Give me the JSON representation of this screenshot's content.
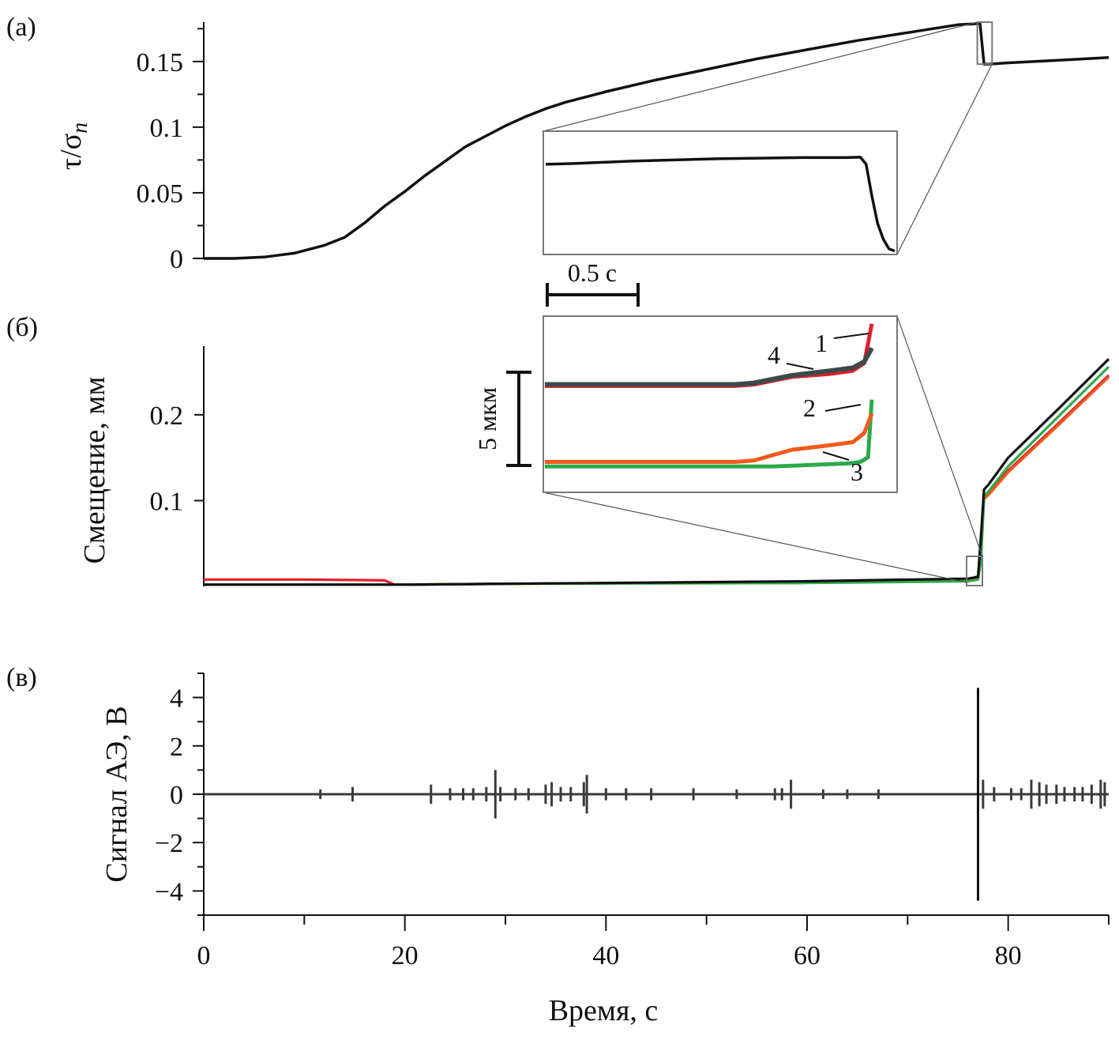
{
  "chart_data": [
    {
      "type": "line",
      "panel_label": "(а)",
      "ylabel": "τ/σ",
      "ylabel_sub": "n",
      "xlim": [
        0,
        90
      ],
      "ylim": [
        0,
        0.18
      ],
      "yticks": [
        0,
        0.05,
        0.1,
        0.15
      ],
      "ytick_labels": [
        "0",
        "0.05",
        "0.1",
        "0.15"
      ],
      "series": [
        {
          "color": "#111111",
          "x": [
            0,
            3,
            6,
            9,
            12,
            14,
            16,
            18,
            20,
            22,
            24,
            26,
            28,
            30,
            32,
            34,
            36,
            38,
            40,
            45,
            50,
            55,
            60,
            65,
            70,
            75,
            77.2,
            77.6,
            78,
            80,
            85,
            90
          ],
          "y": [
            0,
            0,
            0.001,
            0.004,
            0.01,
            0.016,
            0.027,
            0.04,
            0.051,
            0.063,
            0.074,
            0.085,
            0.093,
            0.101,
            0.108,
            0.114,
            0.119,
            0.123,
            0.127,
            0.136,
            0.144,
            0.152,
            0.159,
            0.166,
            0.172,
            0.178,
            0.179,
            0.148,
            0.148,
            0.149,
            0.151,
            0.153
          ]
        }
      ],
      "zoom_box_x": [
        77.4,
        78.4
      ],
      "inset": {
        "x": [
          0,
          0.1,
          0.2,
          0.3,
          0.4,
          0.5,
          0.6,
          0.7,
          0.8,
          0.9,
          1.0,
          1.05,
          1.1,
          1.12,
          1.14,
          1.16,
          1.18,
          1.2,
          1.22
        ],
        "y": [
          0.17,
          0.1702,
          0.1705,
          0.1708,
          0.171,
          0.1712,
          0.1714,
          0.1715,
          0.1716,
          0.1717,
          0.1717,
          0.1717,
          0.1718,
          0.17,
          0.162,
          0.155,
          0.151,
          0.1485,
          0.148
        ]
      },
      "scale_bar_label": "0.5 с"
    },
    {
      "type": "line",
      "panel_label": "(б)",
      "ylabel": "Смещение, мм",
      "xlim": [
        0,
        90
      ],
      "ylim": [
        0,
        0.28
      ],
      "yticks": [
        0.1,
        0.2
      ],
      "ytick_labels": [
        "0.1",
        "0.2"
      ],
      "series": [
        {
          "id": "1",
          "color": "#e0202a",
          "x": [
            0,
            10,
            18,
            19,
            30,
            60,
            76,
            77,
            77.3,
            77.6,
            78,
            80,
            85,
            90
          ],
          "y": [
            0.008,
            0.008,
            0.007,
            0.002,
            0.003,
            0.005,
            0.008,
            0.012,
            0.05,
            0.104,
            0.108,
            0.135,
            0.19,
            0.246
          ]
        },
        {
          "id": "2",
          "color": "#f05a1a",
          "x": [
            0,
            10,
            20,
            30,
            60,
            76,
            77,
            77.3,
            77.6,
            78,
            80,
            85,
            90
          ],
          "y": [
            0.002,
            0.002,
            0.002,
            0.003,
            0.005,
            0.007,
            0.009,
            0.04,
            0.102,
            0.106,
            0.133,
            0.188,
            0.244
          ]
        },
        {
          "id": "3",
          "color": "#2ea84a",
          "x": [
            0,
            10,
            20,
            30,
            60,
            76,
            77,
            77.3,
            77.6,
            78,
            80,
            85,
            90
          ],
          "y": [
            0.002,
            0.002,
            0.002,
            0.003,
            0.004,
            0.006,
            0.008,
            0.03,
            0.105,
            0.11,
            0.14,
            0.198,
            0.256
          ]
        },
        {
          "id": "4",
          "color": "#111111",
          "x": [
            0,
            10,
            20,
            30,
            60,
            76,
            77,
            77.3,
            77.6,
            78,
            80,
            85,
            90
          ],
          "y": [
            0.002,
            0.002,
            0.002,
            0.003,
            0.006,
            0.009,
            0.011,
            0.06,
            0.113,
            0.118,
            0.15,
            0.207,
            0.265
          ]
        }
      ],
      "zoom_box_x": [
        76.5,
        78.2
      ],
      "inset": {
        "series": [
          {
            "id": "1",
            "color": "#e0202a",
            "x": [
              0,
              0.5,
              1.0,
              1.1,
              1.3,
              1.5,
              1.62,
              1.68,
              1.72
            ],
            "y": [
              6.9,
              6.9,
              6.9,
              7.0,
              7.5,
              7.7,
              7.9,
              8.4,
              11.0
            ]
          },
          {
            "id": "2",
            "color": "#f05a1a",
            "x": [
              0,
              0.5,
              1.0,
              1.1,
              1.3,
              1.5,
              1.62,
              1.68,
              1.72
            ],
            "y": [
              1.9,
              1.9,
              1.9,
              2.0,
              2.7,
              3.0,
              3.2,
              3.8,
              5.1
            ]
          },
          {
            "id": "3",
            "color": "#2ea84a",
            "x": [
              0,
              0.5,
              1.0,
              1.2,
              1.4,
              1.6,
              1.66,
              1.7,
              1.72
            ],
            "y": [
              1.6,
              1.6,
              1.6,
              1.6,
              1.7,
              1.8,
              1.9,
              2.2,
              6.0
            ]
          },
          {
            "id": "4",
            "color": "#3d4a4c",
            "x": [
              0,
              0.5,
              1.0,
              1.1,
              1.3,
              1.5,
              1.62,
              1.68,
              1.72
            ],
            "y": [
              7.0,
              7.0,
              7.0,
              7.1,
              7.6,
              7.9,
              8.1,
              8.5,
              9.4
            ]
          }
        ],
        "curve_labels": [
          "1",
          "2",
          "3",
          "4"
        ]
      },
      "scale_bar_label": "5 мкм"
    },
    {
      "type": "line",
      "panel_label": "(в)",
      "ylabel": "Сигнал АЭ, В",
      "xlabel": "Время, с",
      "xlim": [
        0,
        90
      ],
      "ylim": [
        -5,
        5
      ],
      "xticks": [
        0,
        20,
        40,
        60,
        80
      ],
      "xtick_labels": [
        "0",
        "20",
        "40",
        "60",
        "80"
      ],
      "yticks": [
        -4,
        -2,
        0,
        2,
        4
      ],
      "ytick_labels": [
        "−4",
        "−2",
        "0",
        "2",
        "4"
      ],
      "series": [
        {
          "color": "#3a3a3a",
          "spikes": [
            {
              "x": 11.6,
              "amp": 0.2
            },
            {
              "x": 14.8,
              "amp": 0.3
            },
            {
              "x": 22.6,
              "amp": 0.4
            },
            {
              "x": 24.5,
              "amp": 0.25
            },
            {
              "x": 25.8,
              "amp": 0.25
            },
            {
              "x": 26.8,
              "amp": 0.25
            },
            {
              "x": 28.1,
              "amp": 0.3
            },
            {
              "x": 29.0,
              "amp": 1.0
            },
            {
              "x": 29.5,
              "amp": 0.3
            },
            {
              "x": 31.0,
              "amp": 0.25
            },
            {
              "x": 32.3,
              "amp": 0.25
            },
            {
              "x": 34.0,
              "amp": 0.4
            },
            {
              "x": 34.6,
              "amp": 0.5
            },
            {
              "x": 35.5,
              "amp": 0.3
            },
            {
              "x": 36.5,
              "amp": 0.3
            },
            {
              "x": 37.8,
              "amp": 0.5
            },
            {
              "x": 38.1,
              "amp": 0.8
            },
            {
              "x": 40.0,
              "amp": 0.25
            },
            {
              "x": 42.0,
              "amp": 0.25
            },
            {
              "x": 44.5,
              "amp": 0.25
            },
            {
              "x": 48.7,
              "amp": 0.25
            },
            {
              "x": 53.0,
              "amp": 0.2
            },
            {
              "x": 56.8,
              "amp": 0.25
            },
            {
              "x": 57.5,
              "amp": 0.25
            },
            {
              "x": 58.4,
              "amp": 0.6
            },
            {
              "x": 61.6,
              "amp": 0.2
            },
            {
              "x": 64.0,
              "amp": 0.2
            },
            {
              "x": 67.1,
              "amp": 0.2
            },
            {
              "x": 77.0,
              "amp": 4.4
            },
            {
              "x": 77.5,
              "amp": 0.6
            },
            {
              "x": 78.6,
              "amp": 0.3
            },
            {
              "x": 80.3,
              "amp": 0.25
            },
            {
              "x": 81.3,
              "amp": 0.25
            },
            {
              "x": 82.3,
              "amp": 0.6
            },
            {
              "x": 83.1,
              "amp": 0.5
            },
            {
              "x": 83.8,
              "amp": 0.4
            },
            {
              "x": 84.8,
              "amp": 0.4
            },
            {
              "x": 85.6,
              "amp": 0.3
            },
            {
              "x": 86.6,
              "amp": 0.3
            },
            {
              "x": 87.4,
              "amp": 0.3
            },
            {
              "x": 88.3,
              "amp": 0.4
            },
            {
              "x": 89.2,
              "amp": 0.6
            },
            {
              "x": 89.6,
              "amp": 0.5
            }
          ]
        }
      ]
    }
  ]
}
